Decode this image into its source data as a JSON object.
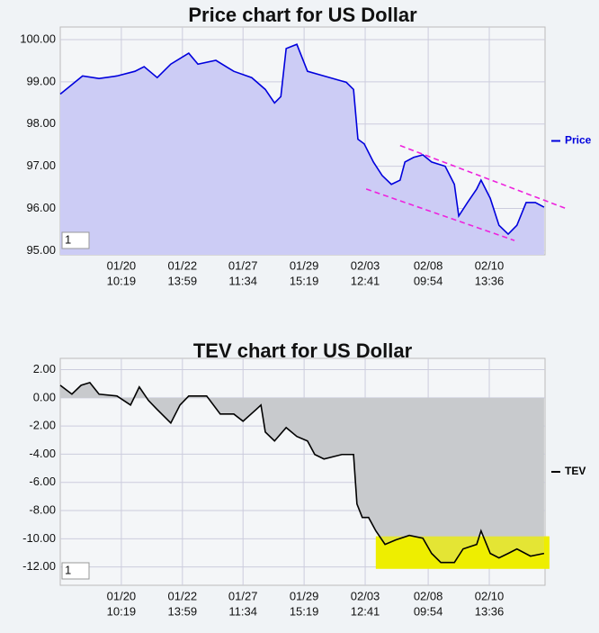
{
  "chart_data": [
    {
      "type": "line",
      "title": "Price chart for US Dollar",
      "legend": "right",
      "grid": true,
      "badge": "1",
      "xlim": [
        0,
        100
      ],
      "ylim": [
        94.9,
        100.3
      ],
      "xticks": [
        {
          "value": 12.6,
          "label": [
            "01/20",
            "10:19"
          ]
        },
        {
          "value": 25.2,
          "label": [
            "01/22",
            "13:59"
          ]
        },
        {
          "value": 37.7,
          "label": [
            "01/27",
            "11:34"
          ]
        },
        {
          "value": 50.3,
          "label": [
            "01/29",
            "15:19"
          ]
        },
        {
          "value": 62.9,
          "label": [
            "02/03",
            "12:41"
          ]
        },
        {
          "value": 75.9,
          "label": [
            "02/08",
            "09:54"
          ]
        },
        {
          "value": 88.5,
          "label": [
            "02/10",
            "13:36"
          ]
        }
      ],
      "yticks": [
        {
          "value": 95,
          "label": "95.00"
        },
        {
          "value": 96,
          "label": "96.00"
        },
        {
          "value": 97,
          "label": "97.00"
        },
        {
          "value": 98,
          "label": "98.00"
        },
        {
          "value": 99,
          "label": "99.00"
        },
        {
          "value": 100,
          "label": "100.00"
        }
      ],
      "x": [
        0,
        4.6,
        8,
        11.7,
        15.4,
        17.3,
        20,
        22.8,
        26.5,
        28.4,
        32.1,
        35.8,
        39.5,
        42.3,
        44.2,
        45.5,
        46.6,
        48.8,
        51,
        54.4,
        59,
        60.5,
        61.4,
        62.7,
        64.6,
        66.4,
        68.3,
        70.1,
        71.1,
        72.9,
        74.8,
        76.6,
        79.4,
        81.3,
        82.2,
        84,
        85.9,
        86.8,
        88.7,
        90.5,
        92.4,
        94.2,
        96.1,
        98,
        99.8
      ],
      "series": [
        {
          "name": "Price",
          "color": "#0000dd",
          "fill": "#ccccf5",
          "values": [
            98.71,
            99.14,
            99.08,
            99.14,
            99.25,
            99.36,
            99.1,
            99.42,
            99.68,
            99.42,
            99.51,
            99.25,
            99.1,
            98.82,
            98.5,
            98.65,
            99.79,
            99.89,
            99.25,
            99.14,
            98.99,
            98.82,
            97.64,
            97.53,
            97.1,
            96.78,
            96.57,
            96.67,
            97.1,
            97.21,
            97.27,
            97.1,
            97.0,
            96.57,
            95.82,
            96.14,
            96.46,
            96.67,
            96.24,
            95.6,
            95.39,
            95.6,
            96.14,
            96.14,
            96.03
          ]
        }
      ],
      "trendlines": {
        "color": "#ee22dd",
        "lines": [
          {
            "x": [
              70.1,
              104.5
            ],
            "y": [
              97.49,
              95.99
            ]
          },
          {
            "x": [
              63.1,
              93.7
            ],
            "y": [
              96.46,
              95.24
            ]
          }
        ]
      }
    },
    {
      "type": "line",
      "title": "TEV chart for US Dollar",
      "legend": "right",
      "grid": true,
      "badge": "1",
      "xlim": [
        0,
        100
      ],
      "ylim": [
        -13.3,
        2.8
      ],
      "fill_baseline": 0,
      "xticks": [
        {
          "value": 12.6,
          "label": [
            "01/20",
            "10:19"
          ]
        },
        {
          "value": 25.2,
          "label": [
            "01/22",
            "13:59"
          ]
        },
        {
          "value": 37.7,
          "label": [
            "01/27",
            "11:34"
          ]
        },
        {
          "value": 50.3,
          "label": [
            "01/29",
            "15:19"
          ]
        },
        {
          "value": 62.9,
          "label": [
            "02/03",
            "12:41"
          ]
        },
        {
          "value": 75.9,
          "label": [
            "02/08",
            "09:54"
          ]
        },
        {
          "value": 88.5,
          "label": [
            "02/10",
            "13:36"
          ]
        }
      ],
      "yticks": [
        {
          "value": -12,
          "label": "-12.00"
        },
        {
          "value": -10,
          "label": "-10.00"
        },
        {
          "value": -8,
          "label": "-8.00"
        },
        {
          "value": -6,
          "label": "-6.00"
        },
        {
          "value": -4,
          "label": "-4.00"
        },
        {
          "value": -2,
          "label": "-2.00"
        },
        {
          "value": 0,
          "label": "0.00"
        },
        {
          "value": 2,
          "label": "2.00"
        }
      ],
      "x": [
        0,
        2.4,
        4.3,
        6.1,
        8,
        11.7,
        14.5,
        16.3,
        18.2,
        20,
        22.8,
        24.7,
        26.5,
        30.2,
        33,
        35.8,
        37.7,
        40.4,
        41.4,
        42.3,
        44.2,
        46.6,
        48.8,
        51,
        52.5,
        54.4,
        58.1,
        60.5,
        61.2,
        62.3,
        63.6,
        65.1,
        67,
        69.2,
        72,
        74.8,
        76.6,
        78.5,
        81.3,
        83.1,
        85.9,
        86.8,
        88.7,
        90.5,
        92.4,
        94.2,
        97,
        99.8
      ],
      "series": [
        {
          "name": "TEV",
          "color": "#000000",
          "fill": "#c8cacd",
          "values": [
            0.89,
            0.26,
            0.89,
            1.08,
            0.26,
            0.13,
            -0.51,
            0.77,
            -0.19,
            -0.83,
            -1.79,
            -0.51,
            0.13,
            0.13,
            -1.15,
            -1.15,
            -1.66,
            -0.83,
            -0.51,
            -2.43,
            -3.06,
            -2.11,
            -2.74,
            -3.06,
            -4.02,
            -4.34,
            -4.02,
            -4.02,
            -7.53,
            -8.49,
            -8.49,
            -9.44,
            -10.4,
            -10.08,
            -9.76,
            -9.96,
            -11.04,
            -11.68,
            -11.68,
            -10.72,
            -10.4,
            -9.44,
            -11.04,
            -11.36,
            -11.04,
            -10.72,
            -11.23,
            -11.04
          ]
        }
      ],
      "highlight": {
        "color": "#eeee00",
        "x": [
          65.1,
          100.9
        ],
        "y": [
          -12.13,
          -9.83
        ]
      }
    }
  ]
}
